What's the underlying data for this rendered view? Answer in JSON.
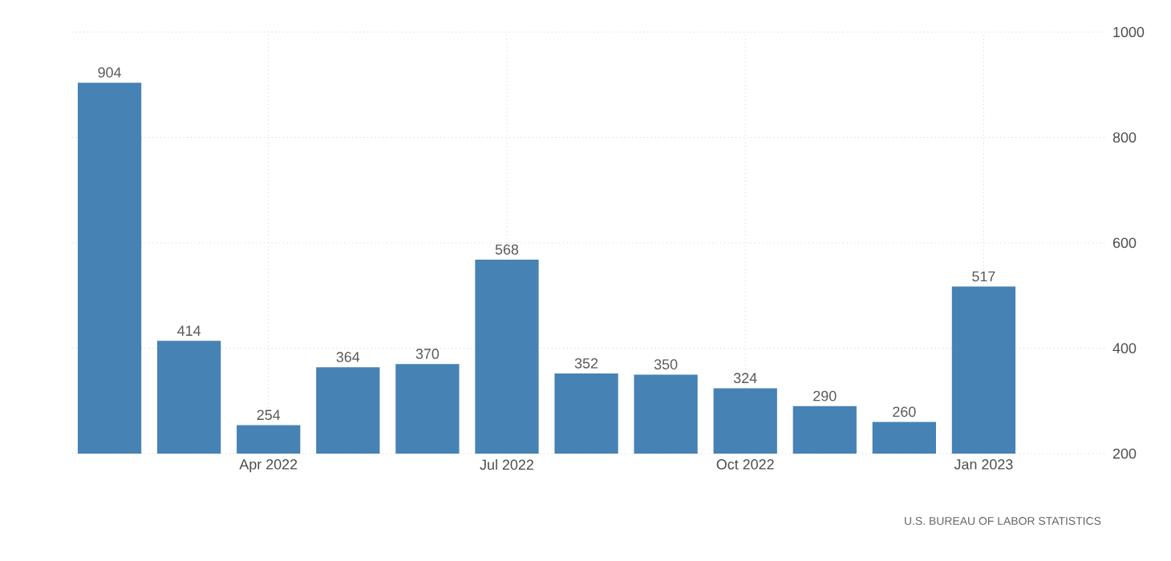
{
  "chart_data": {
    "type": "bar",
    "categories": [
      null,
      null,
      "Apr 2022",
      null,
      null,
      "Jul 2022",
      null,
      null,
      "Oct 2022",
      null,
      null,
      "Jan 2023"
    ],
    "values": [
      904,
      414,
      254,
      364,
      370,
      568,
      352,
      350,
      324,
      290,
      260,
      517
    ],
    "color": "#4682b4",
    "ylim": [
      200,
      1000
    ],
    "yticks": [
      200,
      400,
      600,
      800,
      1000
    ],
    "grid": true,
    "data_labels": true,
    "annotations": [
      "U.S. BUREAU OF LABOR STATISTICS"
    ]
  }
}
